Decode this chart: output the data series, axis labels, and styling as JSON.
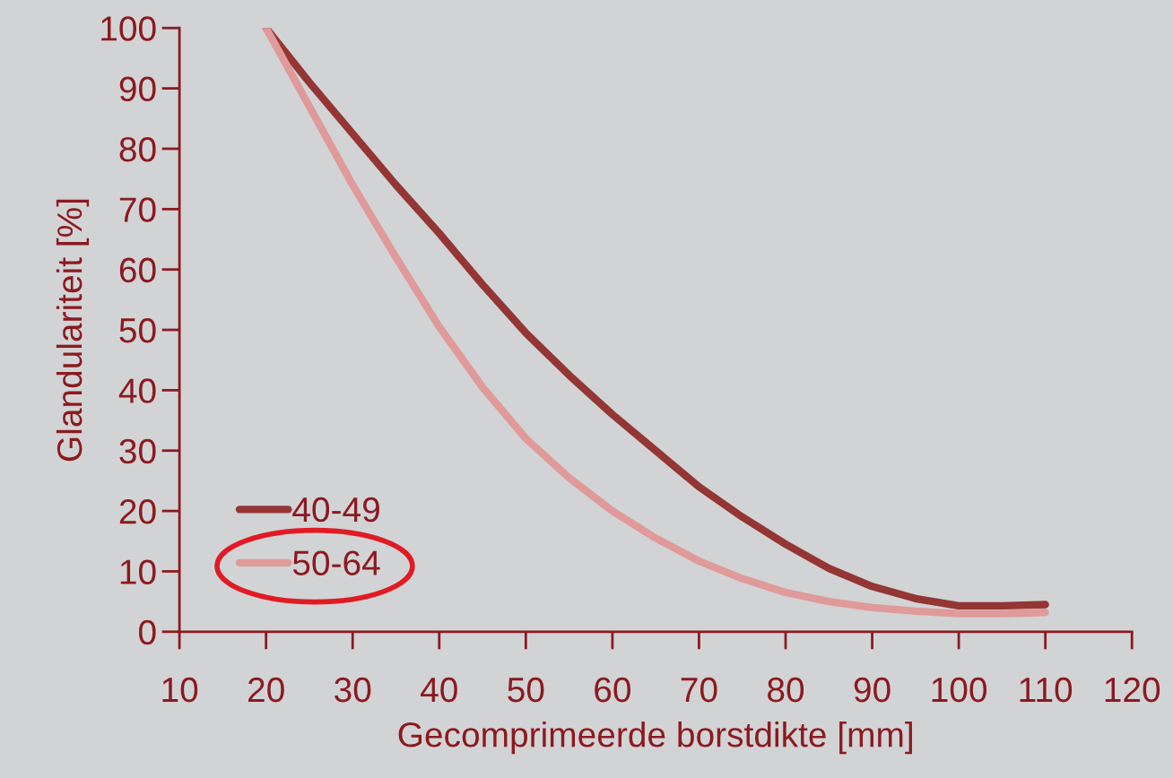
{
  "chart_data": {
    "type": "line",
    "xlabel": "Gecomprimeerde borstdikte [mm]",
    "ylabel": "Glandulariteit [%]",
    "x": [
      20,
      25,
      30,
      35,
      40,
      45,
      50,
      55,
      60,
      65,
      70,
      75,
      80,
      85,
      90,
      95,
      100,
      105,
      110
    ],
    "series": [
      {
        "name": "40-49",
        "color": "#943634",
        "values": [
          100,
          91,
          82.5,
          74,
          66,
          57.5,
          49.5,
          42.5,
          36,
          30,
          24,
          19,
          14.5,
          10.5,
          7.5,
          5.5,
          4.3,
          4.3,
          4.5
        ]
      },
      {
        "name": "50-64",
        "color": "#df9a99",
        "values": [
          100,
          87,
          74,
          62,
          50.5,
          40.5,
          32,
          25.5,
          20,
          15.5,
          11.7,
          8.8,
          6.5,
          5,
          4,
          3.4,
          3,
          3,
          3.2
        ]
      }
    ],
    "xlim": [
      10,
      120
    ],
    "xticks": [
      10,
      20,
      30,
      40,
      50,
      60,
      70,
      80,
      90,
      100,
      110,
      120
    ],
    "ylim": [
      0,
      100
    ],
    "yticks": [
      0,
      10,
      20,
      30,
      40,
      50,
      60,
      70,
      80,
      90,
      100
    ],
    "grid": false,
    "legend": "bottom left",
    "marker": "none",
    "line_style": "solid"
  }
}
